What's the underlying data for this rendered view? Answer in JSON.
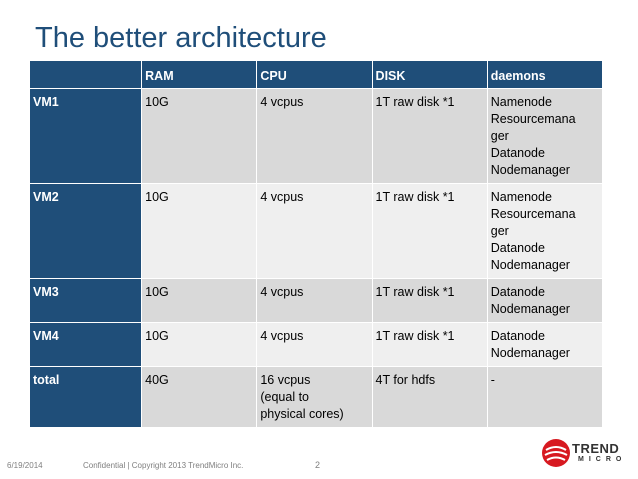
{
  "slide": {
    "title": "The better architecture"
  },
  "table": {
    "headers": [
      "",
      "RAM",
      "CPU",
      "DISK",
      "daemons"
    ],
    "rows": [
      {
        "name": "VM1",
        "ram": "10G",
        "cpu": "4 vcpus",
        "disk": "1T raw disk *1",
        "daemons": [
          "Namenode",
          "Resourcemana",
          "ger",
          "Datanode",
          "Nodemanager"
        ]
      },
      {
        "name": "VM2",
        "ram": "10G",
        "cpu": "4 vcpus",
        "disk": "1T raw disk *1",
        "daemons": [
          "Namenode",
          "Resourcemana",
          "ger",
          "Datanode",
          "Nodemanager"
        ]
      },
      {
        "name": "VM3",
        "ram": "10G",
        "cpu": "4 vcpus",
        "disk": "1T raw disk *1",
        "daemons": [
          "Datanode",
          "Nodemanager"
        ]
      },
      {
        "name": "VM4",
        "ram": "10G",
        "cpu": "4 vcpus",
        "disk": "1T raw disk *1",
        "daemons": [
          "Datanode",
          "Nodemanager"
        ]
      },
      {
        "name": "total",
        "ram": "40G",
        "cpu": [
          "16 vcpus",
          "(equal to",
          "physical cores)"
        ],
        "disk": "4T for hdfs",
        "daemons": [
          "-"
        ]
      }
    ]
  },
  "footer": {
    "date": "6/19/2014",
    "confidential": "Confidential | Copyright 2013 TrendMicro Inc.",
    "page": "2"
  },
  "logo": {
    "name": "TREND",
    "sub": "MICRO",
    "icon": "trend-micro-ball-icon",
    "colors": {
      "red": "#d71920",
      "text": "#333333"
    }
  },
  "colors": {
    "header_bg": "#1f4e79",
    "row_odd": "#d9d9d9",
    "row_even": "#efefef",
    "title": "#1f4e79"
  }
}
